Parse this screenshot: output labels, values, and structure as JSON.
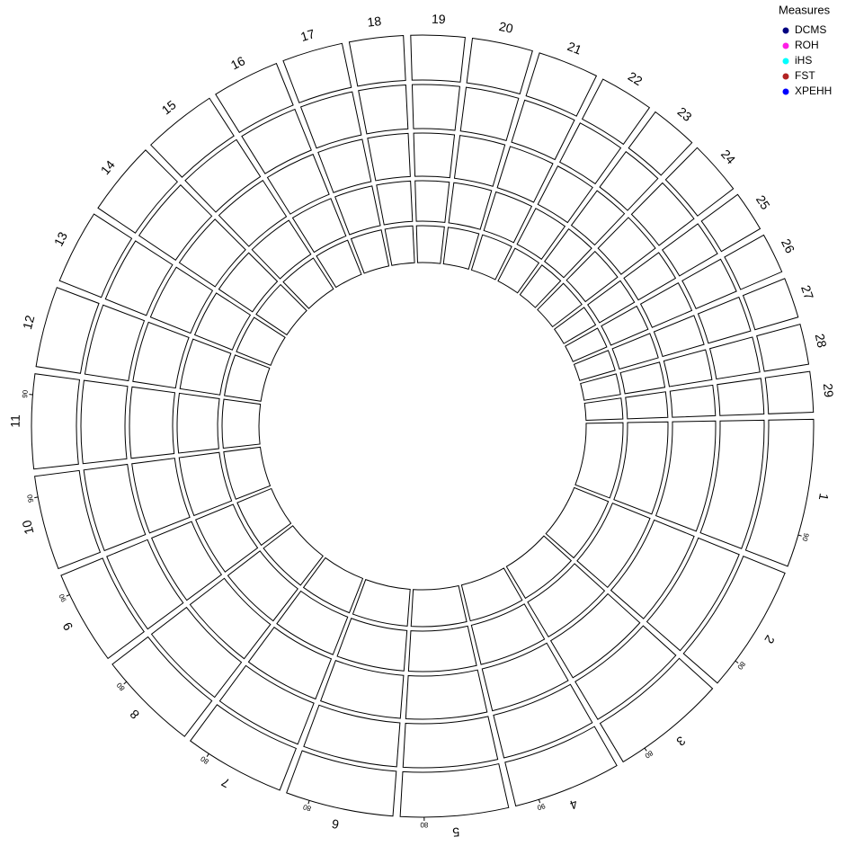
{
  "chart_data": {
    "type": "circos",
    "categories": [
      "1",
      "2",
      "3",
      "4",
      "5",
      "6",
      "7",
      "8",
      "9",
      "10",
      "11",
      "12",
      "13",
      "14",
      "15",
      "16",
      "17",
      "18",
      "19",
      "20",
      "21",
      "22",
      "23",
      "24",
      "25",
      "26",
      "27",
      "28",
      "29"
    ],
    "sector_ticks": [
      90,
      80,
      80,
      90,
      80,
      80,
      80,
      80,
      90,
      90,
      90,
      null,
      null,
      null,
      null,
      null,
      null,
      null,
      null,
      null,
      null,
      null,
      null,
      null,
      null,
      null,
      null,
      null,
      null
    ],
    "legend_title": "Measures",
    "series": [
      {
        "name": "DCMS",
        "color": "#000080"
      },
      {
        "name": "ROH",
        "color": "#ff1ee6"
      },
      {
        "name": "iHS",
        "color": "#00ffff"
      },
      {
        "name": "FST",
        "color": "#b22222"
      },
      {
        "name": "XPEHH",
        "color": "#0000ff"
      }
    ]
  }
}
